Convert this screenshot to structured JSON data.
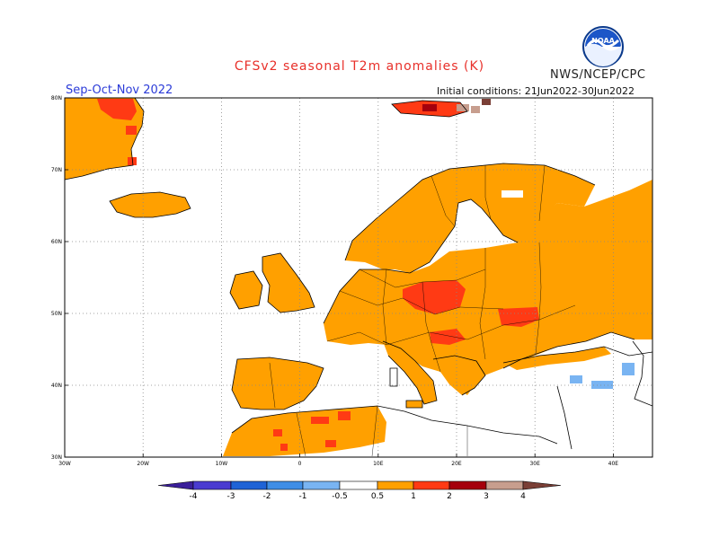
{
  "header": {
    "title": "CFSv2 seasonal T2m anomalies (K)",
    "agency": "NWS/NCEP/CPC",
    "logo_text": "NOAA",
    "season": "Sep-Oct-Nov 2022",
    "initial_conditions": "Initial conditions: 21Jun2022-30Jun2022"
  },
  "map": {
    "lat_labels": [
      "80N",
      "70N",
      "60N",
      "50N",
      "40N",
      "30N"
    ],
    "lon_labels": [
      "30W",
      "20W",
      "10W",
      "0",
      "10E",
      "20E",
      "30E",
      "40E"
    ],
    "lon_range": [
      -30,
      45
    ],
    "lat_range": [
      30,
      80
    ]
  },
  "legend": {
    "tick_labels": [
      "-4",
      "-3",
      "-2",
      "-1",
      "-0.5",
      "0.5",
      "1",
      "2",
      "3",
      "4"
    ],
    "colors": {
      "below_-4": "#3b1f9a",
      "-4_-3": "#4a3bd0",
      "-3_-2": "#1f63d6",
      "-2_-1": "#3f8ee6",
      "-1_-0.5": "#79b4f2",
      "neutral": "#ffffff",
      "0.5_1": "#ffa000",
      "1_2": "#ff3a14",
      "2_3": "#a5000c",
      "3_4": "#c79e8e",
      "above_4": "#7a3f36"
    }
  }
}
